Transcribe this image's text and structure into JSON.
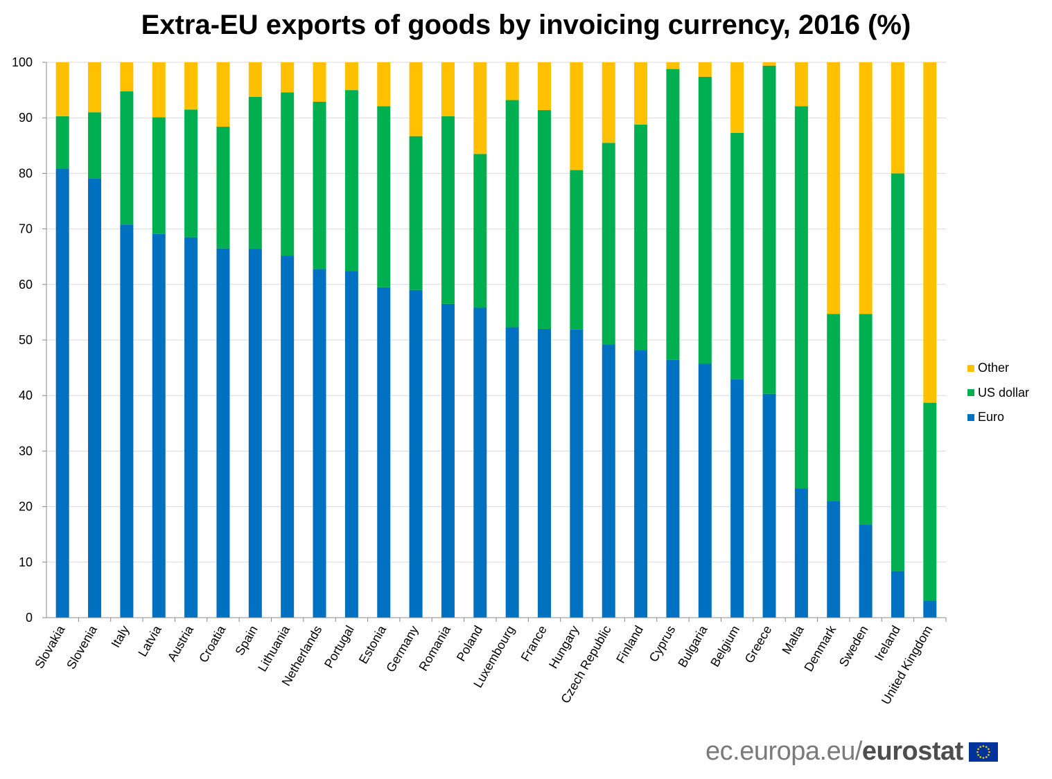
{
  "title": "Extra-EU exports of goods by invoicing currency, 2016 (%)",
  "footer": {
    "url": "ec.europa.eu/",
    "brand": "eurostat"
  },
  "legend": [
    {
      "name": "Other",
      "color": "#FFC000"
    },
    {
      "name": "US dollar",
      "color": "#00B050"
    },
    {
      "name": "Euro",
      "color": "#0070C0"
    }
  ],
  "chart_data": {
    "type": "bar",
    "stacked": true,
    "title": "Extra-EU exports of goods by invoicing currency, 2016 (%)",
    "categories": [
      "Slovakia",
      "Slovenia",
      "Italy",
      "Latvia",
      "Austria",
      "Croatia",
      "Spain",
      "Lithuania",
      "Netherlands",
      "Portugal",
      "Estonia",
      "Germany",
      "Romania",
      "Poland",
      "Luxembourg",
      "France",
      "Hungary",
      "Czech Republic",
      "Finland",
      "Cyprus",
      "Bulgaria",
      "Belgium",
      "Greece",
      "Malta",
      "Denmark",
      "Sweden",
      "Ireland",
      "United Kingdom"
    ],
    "series": [
      {
        "name": "Euro",
        "color": "#0070C0",
        "values": [
          80.9,
          79.1,
          70.8,
          69.1,
          68.5,
          66.5,
          66.4,
          65.2,
          62.8,
          62.4,
          59.5,
          59.0,
          56.5,
          55.8,
          52.3,
          52.0,
          51.9,
          49.2,
          48.2,
          46.4,
          45.7,
          42.9,
          40.3,
          23.3,
          21.0,
          16.8,
          8.4,
          3.1
        ]
      },
      {
        "name": "US dollar",
        "color": "#00B050",
        "values": [
          9.4,
          11.9,
          24.0,
          21.0,
          23.0,
          21.9,
          27.4,
          29.4,
          30.1,
          32.6,
          32.6,
          27.7,
          33.8,
          27.7,
          40.9,
          39.4,
          28.7,
          36.3,
          40.6,
          52.4,
          51.7,
          44.4,
          59.1,
          68.8,
          33.7,
          37.9,
          71.6,
          35.6
        ]
      },
      {
        "name": "Other",
        "color": "#FFC000",
        "values": [
          9.7,
          9.0,
          5.2,
          9.9,
          8.5,
          11.6,
          6.2,
          5.4,
          7.1,
          5.0,
          7.9,
          13.3,
          9.7,
          16.5,
          6.8,
          8.6,
          19.4,
          14.5,
          11.2,
          1.2,
          2.6,
          12.7,
          0.6,
          7.9,
          45.3,
          45.3,
          20.0,
          61.3
        ]
      }
    ],
    "ylim": [
      0,
      100
    ],
    "yticks": [
      0,
      10,
      20,
      30,
      40,
      50,
      60,
      70,
      80,
      90,
      100
    ],
    "grid": true,
    "legend_position": "right"
  }
}
